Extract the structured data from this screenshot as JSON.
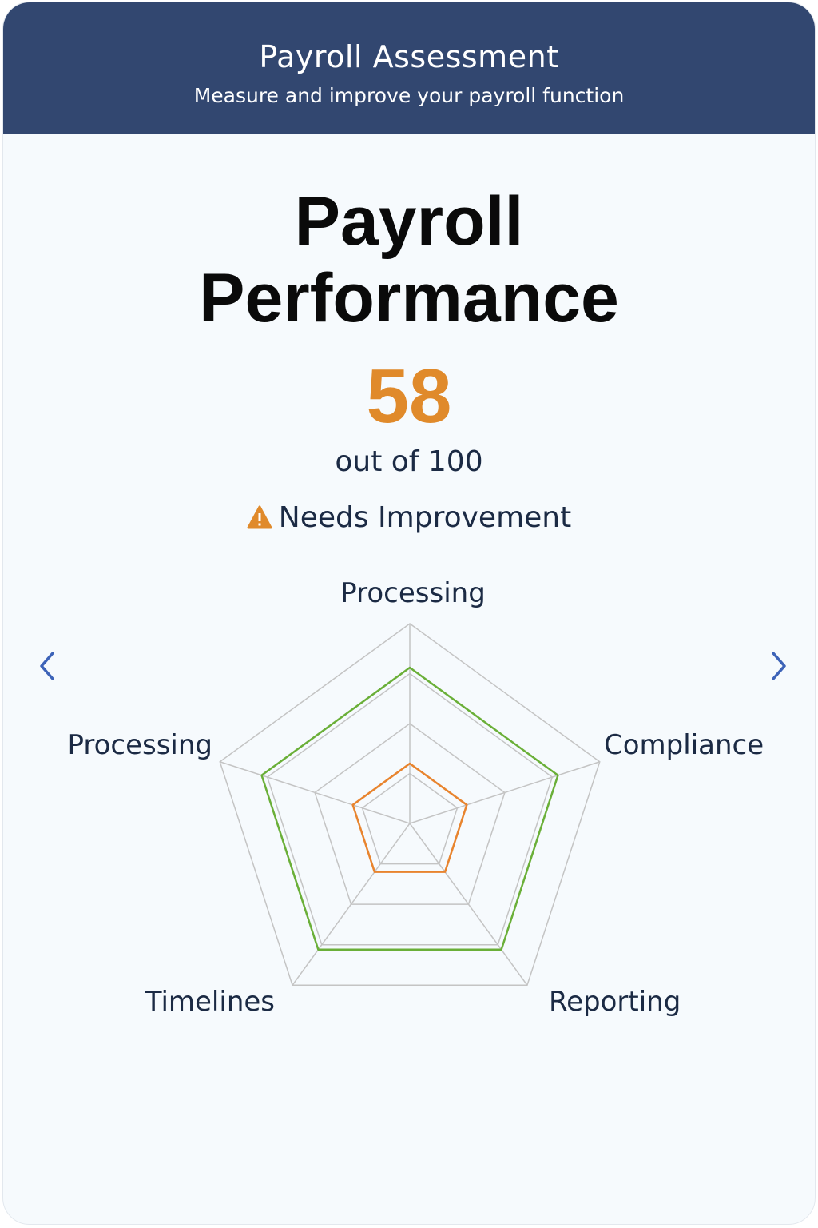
{
  "header": {
    "title": "Payroll Assessment",
    "subtitle": "Measure and improve your payroll function"
  },
  "main": {
    "title_line1": "Payroll",
    "title_line2": "Performance",
    "score": "58",
    "score_caption": "out of 100",
    "status_label": "Needs Improvement",
    "status_icon": "warning-triangle-icon"
  },
  "colors": {
    "header_bg": "#324770",
    "score": "#e08a2b",
    "series_outer": "#6aaf38",
    "series_inner": "#e8842e",
    "grid": "#c4c4c4",
    "nav": "#3d63b8"
  },
  "navigation": {
    "prev_icon": "chevron-left-icon",
    "next_icon": "chevron-right-icon"
  },
  "chart_data": {
    "type": "radar",
    "axes": [
      "Processing",
      "Compliance",
      "Reporting",
      "Timelines",
      "Processing"
    ],
    "max": 100,
    "grid_levels": 4,
    "series": [
      {
        "color": "#6aaf38",
        "values": [
          78,
          78,
          78,
          78,
          78
        ]
      },
      {
        "color": "#e8842e",
        "values": [
          30,
          30,
          30,
          30,
          30
        ]
      }
    ]
  }
}
